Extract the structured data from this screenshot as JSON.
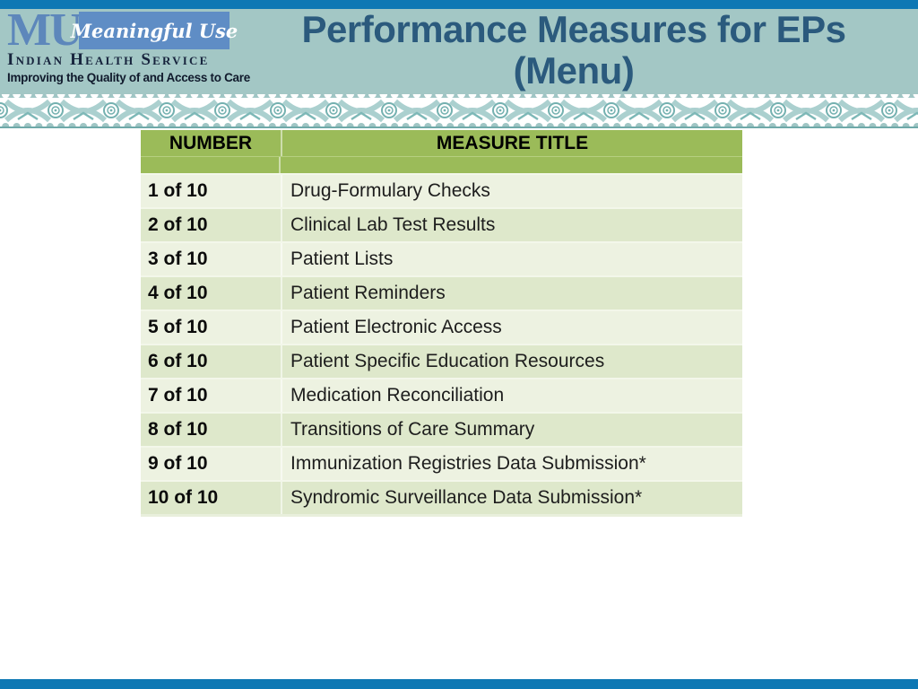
{
  "header": {
    "logo": {
      "mu": "MU",
      "badge": "Meaningful Use",
      "org": "Indian Health Service",
      "tagline": "Improving the Quality of and Access to Care"
    },
    "title_line1": "Performance Measures for EPs",
    "title_line2": "(Menu)"
  },
  "table": {
    "columns": [
      "NUMBER",
      "MEASURE TITLE"
    ],
    "rows": [
      {
        "number": "1 of 10",
        "title": "Drug-Formulary Checks"
      },
      {
        "number": "2 of 10",
        "title": "Clinical Lab Test Results"
      },
      {
        "number": "3 of 10",
        "title": "Patient Lists"
      },
      {
        "number": "4 of 10",
        "title": "Patient Reminders"
      },
      {
        "number": "5 of 10",
        "title": "Patient Electronic Access"
      },
      {
        "number": "6 of 10",
        "title": "Patient Specific Education Resources"
      },
      {
        "number": "7 of 10",
        "title": "Medication Reconciliation"
      },
      {
        "number": "8 of 10",
        "title": "Transitions of Care Summary"
      },
      {
        "number": "9 of 10",
        "title": "Immunization Registries Data Submission*"
      },
      {
        "number": "10 of 10",
        "title": "Syndromic Surveillance Data Submission*"
      }
    ]
  },
  "colors": {
    "accent_bar_blue": "#0e78b4",
    "header_teal": "#a3c7c5",
    "title_blue": "#2b5a7d",
    "logo_blue": "#5f8dc5",
    "table_header_green": "#9bbb59",
    "row_light_green": "#edf2e1",
    "row_dark_green": "#dee8cb",
    "frieze_teal": "#9fc5c4"
  }
}
